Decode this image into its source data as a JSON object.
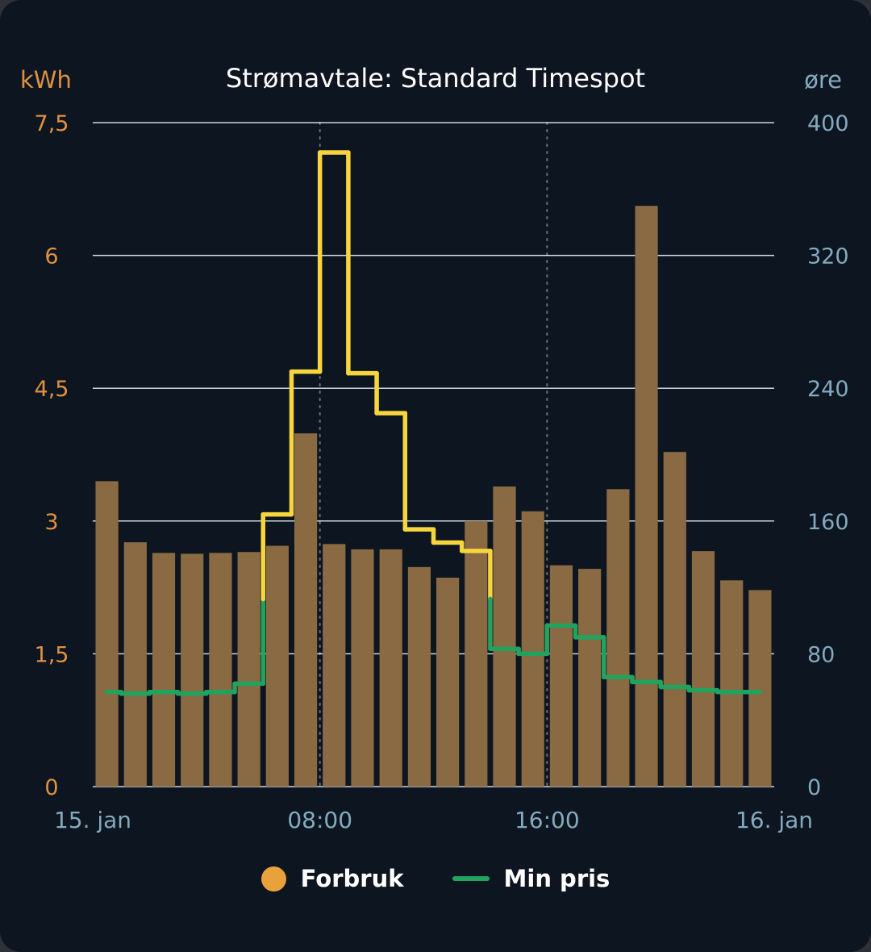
{
  "colors": {
    "background": "#0d1520",
    "frame": "#2e3238",
    "title_text": "#ffffff",
    "grid_line": "#cdd6dd",
    "bar": "#8a6a42",
    "legend_dot": "#e9a13b",
    "price_line_low": "#21a35f",
    "price_line_high": "#f6d63c",
    "left_axis_text": "#e0913f",
    "right_axis_text": "#84aabf"
  },
  "chart_data": {
    "type": "bar+step-line",
    "title": "Strømavtale: Standard Timespot",
    "left_axis": {
      "unit": "kWh",
      "range": [
        0,
        7.5
      ],
      "ticks": [
        0,
        1.5,
        3,
        4.5,
        6,
        7.5
      ],
      "tick_labels": [
        "0",
        "1,5",
        "3",
        "4,5",
        "6",
        "7,5"
      ]
    },
    "right_axis": {
      "unit": "øre",
      "range": [
        0,
        400
      ],
      "ticks": [
        0,
        80,
        160,
        240,
        320,
        400
      ],
      "tick_labels": [
        "0",
        "80",
        "160",
        "240",
        "320",
        "400"
      ]
    },
    "x_axis": {
      "hours": 24,
      "tick_labels": [
        {
          "hour": 0,
          "label": "15. jan"
        },
        {
          "hour": 8,
          "label": "08:00"
        },
        {
          "hour": 16,
          "label": "16:00"
        },
        {
          "hour": 24,
          "label": "16. jan"
        }
      ],
      "grid_hours": [
        8,
        16
      ]
    },
    "series": [
      {
        "name": "Forbruk",
        "type": "column",
        "axis": "left",
        "unit": "kWh",
        "values": [
          3.45,
          2.76,
          2.64,
          2.63,
          2.64,
          2.65,
          2.72,
          3.99,
          2.74,
          2.68,
          2.68,
          2.48,
          2.36,
          3,
          3.39,
          3.11,
          2.5,
          2.46,
          3.36,
          6.56,
          3.78,
          2.66,
          2.33,
          2.22
        ]
      },
      {
        "name": "Min pris",
        "type": "step-line",
        "axis": "right",
        "unit": "øre",
        "threshold": 113,
        "values": [
          57,
          56,
          57,
          56,
          57,
          62,
          164,
          250,
          382,
          249,
          225,
          155,
          147,
          142,
          83,
          80,
          97,
          90,
          66,
          63,
          60,
          58,
          57,
          57
        ]
      }
    ],
    "grid": "horizontal",
    "legend_position": "bottom"
  }
}
